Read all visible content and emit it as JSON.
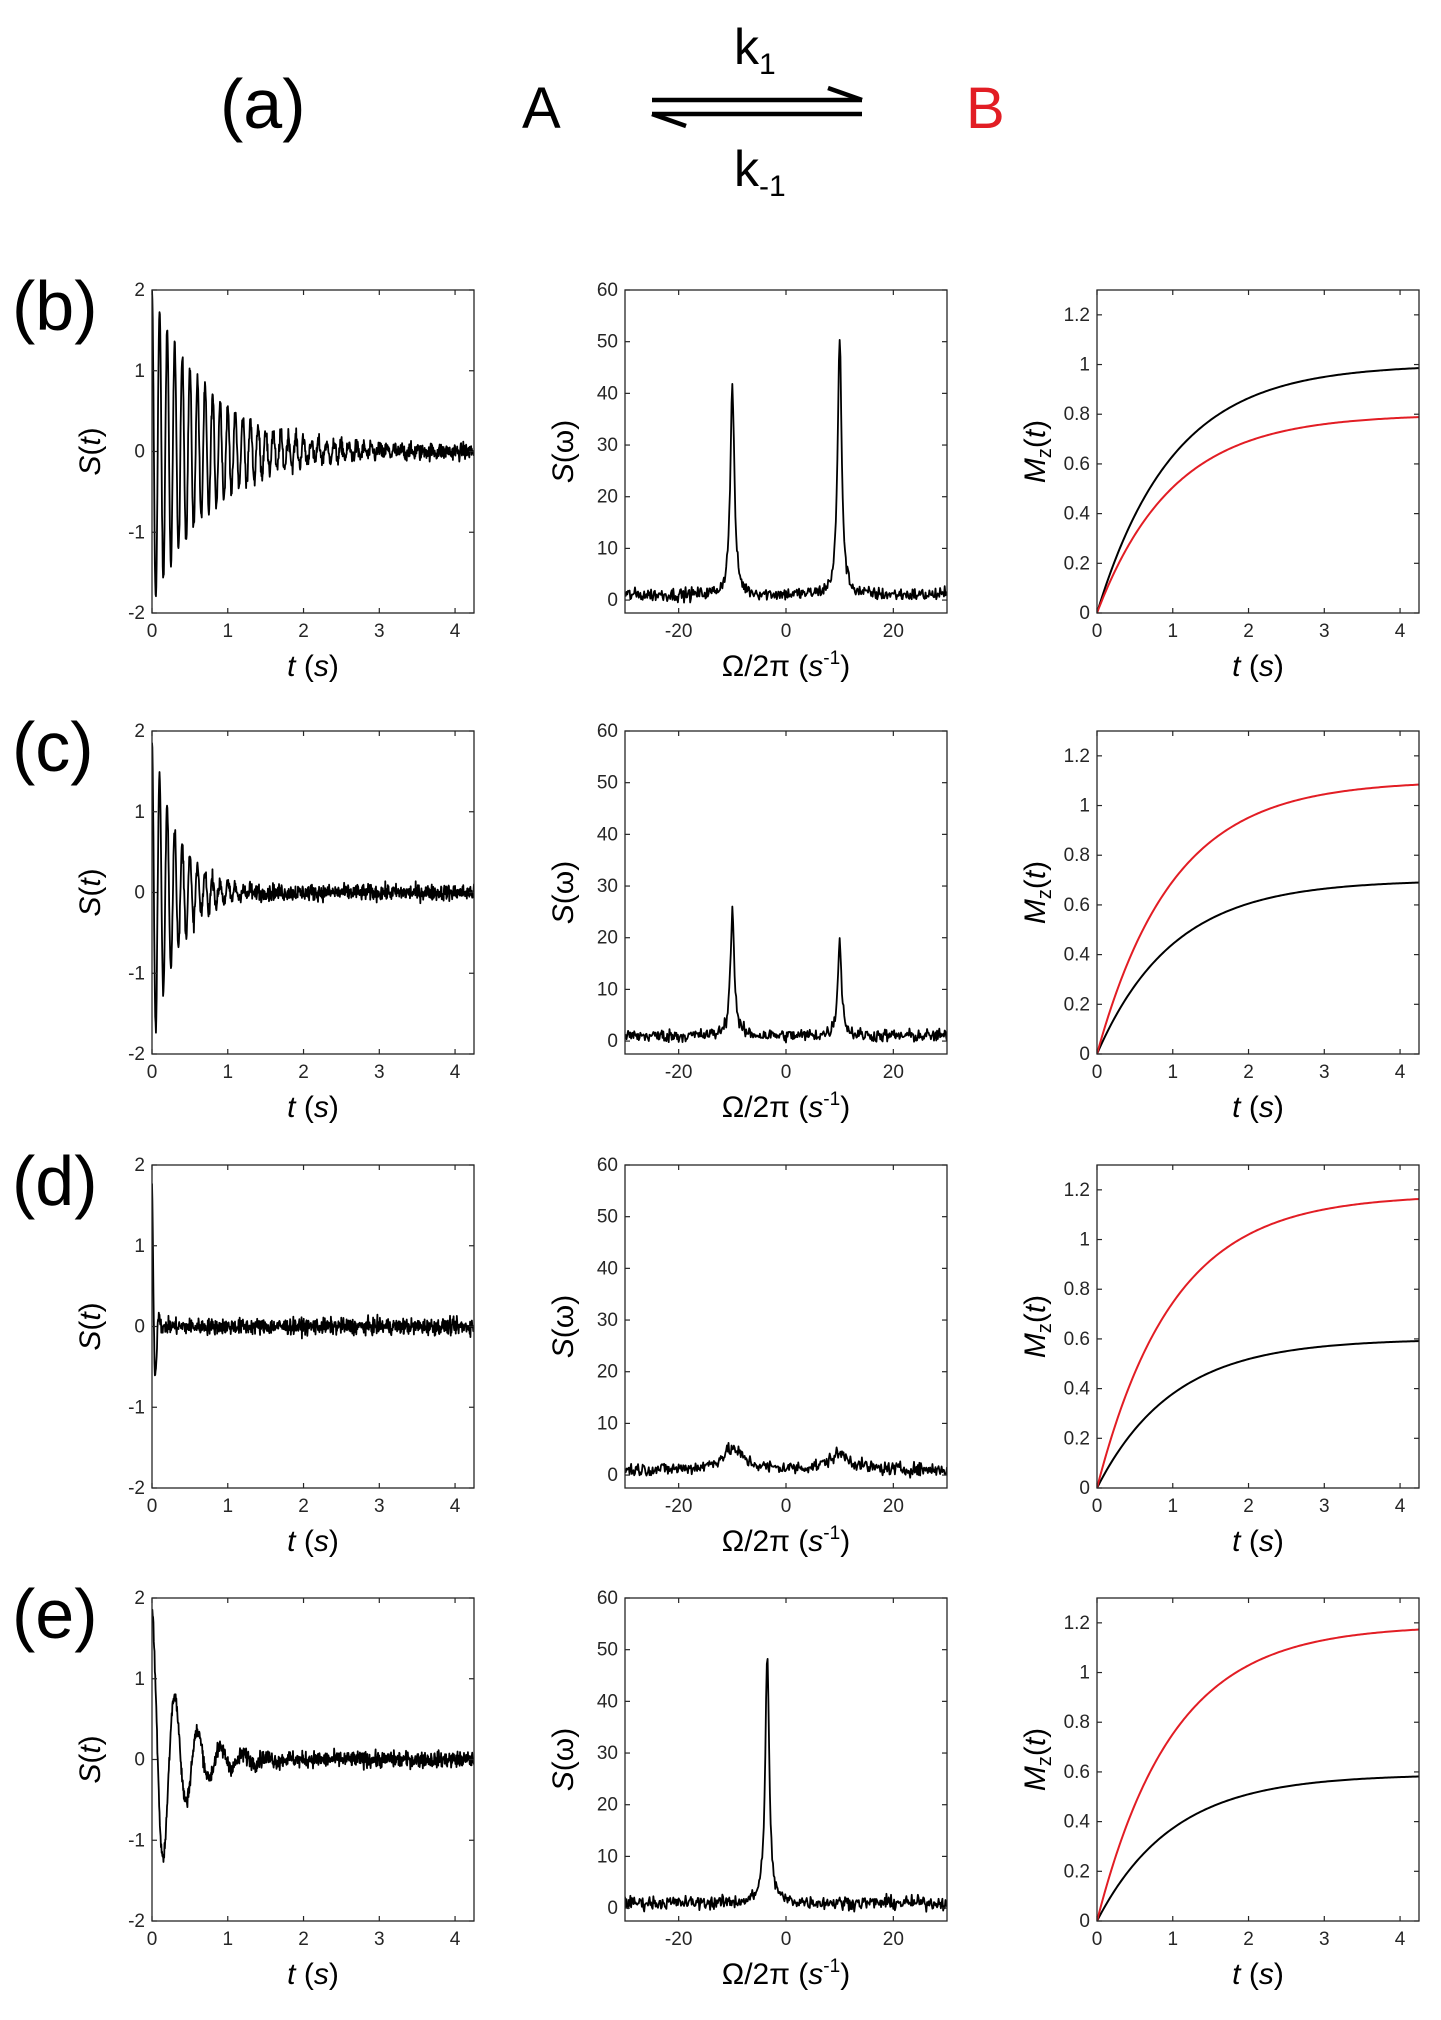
{
  "figure": {
    "colors": {
      "black": "#000000",
      "red": "#e21d24"
    },
    "reaction": {
      "panel_label": "(a)",
      "species_a": "A",
      "species_b": "B",
      "k_forward": "k",
      "k_forward_sub": "1",
      "k_backward": "k",
      "k_backward_sub": "-1"
    }
  },
  "axis_labels": {
    "time_signal_y": "S(t)",
    "time_x": "t (s)",
    "spectrum_y": "S(ω)",
    "spectrum_x": "Ω/2π (s⁻¹)",
    "mag_y": "Mz(t)"
  },
  "chart_data": [
    {
      "panel": "(b)",
      "type": "line",
      "subplot": "time-signal",
      "title": "",
      "xlabel": "t (s)",
      "ylabel": "S(t)",
      "xlim": [
        0,
        4.25
      ],
      "ylim": [
        -2,
        2
      ],
      "xticks": [
        0,
        1,
        2,
        3,
        4
      ],
      "yticks": [
        -2,
        -1,
        0,
        1,
        2
      ],
      "series": [
        {
          "name": "S(t)",
          "color": "#000000",
          "amplitude": 1.95,
          "decay_rate": 1.3,
          "beat_frequency": 10,
          "noise": 0.1
        }
      ]
    },
    {
      "panel": "(b)",
      "type": "line",
      "subplot": "spectrum",
      "title": "",
      "xlabel": "Ω/2π (s⁻¹)",
      "ylabel": "S(ω)",
      "xlim": [
        -30,
        30
      ],
      "ylim": [
        -2.5,
        60
      ],
      "xticks": [
        -20,
        0,
        20
      ],
      "yticks": [
        0,
        10,
        20,
        30,
        40,
        50,
        60
      ],
      "series": [
        {
          "name": "S(ω)",
          "color": "#000000",
          "baseline": 1,
          "noise": 1.3,
          "peaks": [
            {
              "position": -10,
              "height": 41.5
            },
            {
              "position": 10,
              "height": 50.5
            }
          ]
        }
      ]
    },
    {
      "panel": "(b)",
      "type": "line",
      "subplot": "magnetization",
      "title": "",
      "xlabel": "t (s)",
      "ylabel": "Mz(t)",
      "xlim": [
        0,
        4.25
      ],
      "ylim": [
        0,
        1.3
      ],
      "xticks": [
        0,
        1,
        2,
        3,
        4
      ],
      "yticks": [
        0,
        0.2,
        0.4,
        0.6,
        0.8,
        1,
        1.2
      ],
      "series": [
        {
          "name": "A",
          "color": "#000000",
          "plateau": 1.0,
          "rate": 1.0,
          "value_at_end": 0.99
        },
        {
          "name": "B",
          "color": "#e21d24",
          "plateau": 0.8,
          "rate": 1.0,
          "value_at_end": 0.79
        }
      ]
    },
    {
      "panel": "(c)",
      "type": "line",
      "subplot": "time-signal",
      "title": "",
      "xlabel": "t (s)",
      "ylabel": "S(t)",
      "xlim": [
        0,
        4.25
      ],
      "ylim": [
        -2,
        2
      ],
      "xticks": [
        0,
        1,
        2,
        3,
        4
      ],
      "yticks": [
        -2,
        -1,
        0,
        1,
        2
      ],
      "series": [
        {
          "name": "S(t)",
          "color": "#000000",
          "amplitude": 1.95,
          "decay_rate": 3.0,
          "beat_frequency": 10,
          "noise": 0.1
        }
      ]
    },
    {
      "panel": "(c)",
      "type": "line",
      "subplot": "spectrum",
      "title": "",
      "xlabel": "Ω/2π (s⁻¹)",
      "ylabel": "S(ω)",
      "xlim": [
        -30,
        30
      ],
      "ylim": [
        -2.5,
        60
      ],
      "xticks": [
        -20,
        0,
        20
      ],
      "yticks": [
        0,
        10,
        20,
        30,
        40,
        50,
        60
      ],
      "series": [
        {
          "name": "S(ω)",
          "color": "#000000",
          "baseline": 1,
          "noise": 1.3,
          "peaks": [
            {
              "position": -10,
              "height": 25
            },
            {
              "position": 10,
              "height": 19
            }
          ]
        }
      ]
    },
    {
      "panel": "(c)",
      "type": "line",
      "subplot": "magnetization",
      "title": "",
      "xlabel": "t (s)",
      "ylabel": "Mz(t)",
      "xlim": [
        0,
        4.25
      ],
      "ylim": [
        0,
        1.3
      ],
      "xticks": [
        0,
        1,
        2,
        3,
        4
      ],
      "yticks": [
        0,
        0.2,
        0.4,
        0.6,
        0.8,
        1,
        1.2
      ],
      "series": [
        {
          "name": "A",
          "color": "#000000",
          "plateau": 0.7,
          "rate": 1.0,
          "value_at_end": 0.69
        },
        {
          "name": "B",
          "color": "#e21d24",
          "plateau": 1.1,
          "rate": 1.0,
          "value_at_end": 1.08
        }
      ]
    },
    {
      "panel": "(d)",
      "type": "line",
      "subplot": "time-signal",
      "title": "",
      "xlabel": "t (s)",
      "ylabel": "S(t)",
      "xlim": [
        0,
        4.25
      ],
      "ylim": [
        -2,
        2
      ],
      "xticks": [
        0,
        1,
        2,
        3,
        4
      ],
      "yticks": [
        -2,
        -1,
        0,
        1,
        2
      ],
      "series": [
        {
          "name": "S(t)",
          "color": "#000000",
          "amplitude": 1.85,
          "decay_rate": 25,
          "beat_frequency": 10,
          "noise": 0.1
        }
      ]
    },
    {
      "panel": "(d)",
      "type": "line",
      "subplot": "spectrum",
      "title": "",
      "xlabel": "Ω/2π (s⁻¹)",
      "ylabel": "S(ω)",
      "xlim": [
        -30,
        30
      ],
      "ylim": [
        -2.5,
        60
      ],
      "xticks": [
        -20,
        0,
        20
      ],
      "yticks": [
        0,
        10,
        20,
        30,
        40,
        50,
        60
      ],
      "series": [
        {
          "name": "S(ω)",
          "color": "#000000",
          "baseline": 1,
          "noise": 1.3,
          "peaks": [
            {
              "position": -10,
              "height": 5
            },
            {
              "position": 10,
              "height": 4
            }
          ]
        }
      ]
    },
    {
      "panel": "(d)",
      "type": "line",
      "subplot": "magnetization",
      "title": "",
      "xlabel": "t (s)",
      "ylabel": "Mz(t)",
      "xlim": [
        0,
        4.25
      ],
      "ylim": [
        0,
        1.3
      ],
      "xticks": [
        0,
        1,
        2,
        3,
        4
      ],
      "yticks": [
        0,
        0.2,
        0.4,
        0.6,
        0.8,
        1,
        1.2
      ],
      "series": [
        {
          "name": "A",
          "color": "#000000",
          "plateau": 0.6,
          "rate": 1.0,
          "value_at_end": 0.6
        },
        {
          "name": "B",
          "color": "#e21d24",
          "plateau": 1.18,
          "rate": 1.0,
          "value_at_end": 1.17
        }
      ]
    },
    {
      "panel": "(e)",
      "type": "line",
      "subplot": "time-signal",
      "title": "",
      "xlabel": "t (s)",
      "ylabel": "S(t)",
      "xlim": [
        0,
        4.25
      ],
      "ylim": [
        -2,
        2
      ],
      "xticks": [
        0,
        1,
        2,
        3,
        4
      ],
      "yticks": [
        -2,
        -1,
        0,
        1,
        2
      ],
      "series": [
        {
          "name": "S(t)",
          "color": "#000000",
          "amplitude": 1.85,
          "decay_rate": 2.8,
          "beat_frequency": 3.3,
          "noise": 0.1
        }
      ]
    },
    {
      "panel": "(e)",
      "type": "line",
      "subplot": "spectrum",
      "title": "",
      "xlabel": "Ω/2π (s⁻¹)",
      "ylabel": "S(ω)",
      "xlim": [
        -30,
        30
      ],
      "ylim": [
        -2.5,
        60
      ],
      "xticks": [
        -20,
        0,
        20
      ],
      "yticks": [
        0,
        10,
        20,
        30,
        40,
        50,
        60
      ],
      "series": [
        {
          "name": "S(ω)",
          "color": "#000000",
          "baseline": 1,
          "noise": 1.3,
          "peaks": [
            {
              "position": -3.5,
              "height": 48.5
            }
          ]
        }
      ]
    },
    {
      "panel": "(e)",
      "type": "line",
      "subplot": "magnetization",
      "title": "",
      "xlabel": "t (s)",
      "ylabel": "Mz(t)",
      "xlim": [
        0,
        4.25
      ],
      "ylim": [
        0,
        1.3
      ],
      "xticks": [
        0,
        1,
        2,
        3,
        4
      ],
      "yticks": [
        0,
        0.2,
        0.4,
        0.6,
        0.8,
        1,
        1.2
      ],
      "series": [
        {
          "name": "A",
          "color": "#000000",
          "plateau": 0.59,
          "rate": 1.0,
          "value_at_end": 0.59
        },
        {
          "name": "B",
          "color": "#e21d24",
          "plateau": 1.19,
          "rate": 1.0,
          "value_at_end": 1.18
        }
      ]
    }
  ]
}
